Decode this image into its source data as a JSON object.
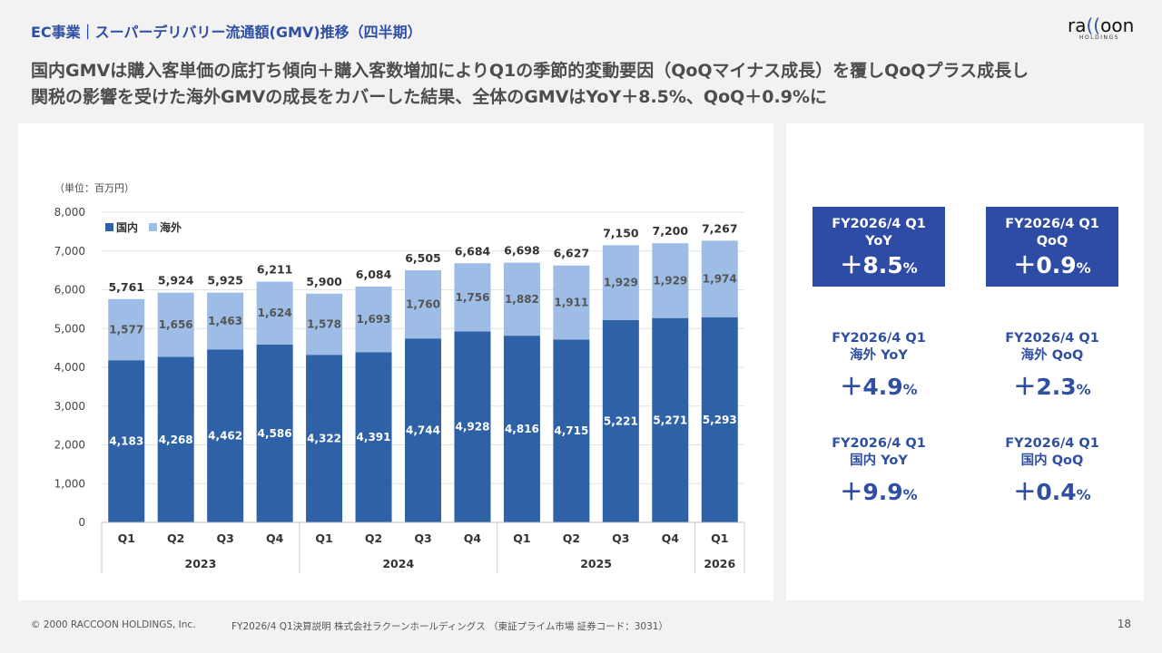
{
  "header": {
    "title": "EC事業｜スーパーデリバリー流通額(GMV)推移（四半期）",
    "logo_text": "raccoon",
    "logo_sub": "HOLDINGS"
  },
  "headline": {
    "line1": "国内GMVは購入客単価の底打ち傾向＋購入客数増加によりQ1の季節的変動要因（QoQマイナス成長）を覆しQoQプラス成長し",
    "line2": "関税の影響を受けた海外GMVの成長をカバーした結果、全体のGMVはYoY＋8.5%、QoQ＋0.9%に"
  },
  "colors": {
    "domestic": "#2e61a6",
    "overseas": "#9dbde6",
    "accent": "#2e4ba6",
    "title": "#2f4fa3"
  },
  "chart_data": {
    "type": "bar",
    "stacked": true,
    "unit_label": "（単位：百万円）",
    "categories": [
      "Q1",
      "Q2",
      "Q3",
      "Q4",
      "Q1",
      "Q2",
      "Q3",
      "Q4",
      "Q1",
      "Q2",
      "Q3",
      "Q4",
      "Q1"
    ],
    "year_groups": [
      {
        "label": "2023",
        "count": 4
      },
      {
        "label": "2024",
        "count": 4
      },
      {
        "label": "2025",
        "count": 4
      },
      {
        "label": "2026",
        "count": 1
      }
    ],
    "series": [
      {
        "name": "国内",
        "values": [
          4183,
          4268,
          4462,
          4586,
          4322,
          4391,
          4744,
          4928,
          4816,
          4715,
          5221,
          5271,
          5293
        ]
      },
      {
        "name": "海外",
        "values": [
          1577,
          1656,
          1463,
          1624,
          1578,
          1693,
          1760,
          1756,
          1882,
          1911,
          1929,
          1929,
          1974
        ]
      }
    ],
    "totals": [
      5761,
      5924,
      5925,
      6211,
      5900,
      6084,
      6505,
      6684,
      6698,
      6627,
      7150,
      7200,
      7267
    ],
    "ylim": [
      0,
      8000
    ],
    "yticks": [
      0,
      1000,
      2000,
      3000,
      4000,
      5000,
      6000,
      7000,
      8000
    ],
    "ytick_labels": [
      "0",
      "1,000",
      "2,000",
      "3,000",
      "4,000",
      "5,000",
      "6,000",
      "7,000",
      "8,000"
    ],
    "legend_position": "top-left",
    "grid": true
  },
  "kpis": [
    {
      "label": "FY2026/4 Q1\nYoY",
      "value": "＋8.5",
      "unit": "%",
      "filled": true
    },
    {
      "label": "FY2026/4 Q1\nQoQ",
      "value": "＋0.9",
      "unit": "%",
      "filled": true
    },
    {
      "label": "FY2026/4 Q1\n海外 YoY",
      "value": "＋4.9",
      "unit": "%",
      "filled": false
    },
    {
      "label": "FY2026/4 Q1\n海外 QoQ",
      "value": "＋2.3",
      "unit": "%",
      "filled": false
    },
    {
      "label": "FY2026/4 Q1\n国内 YoY",
      "value": "＋9.9",
      "unit": "%",
      "filled": false
    },
    {
      "label": "FY2026/4 Q1\n国内 QoQ",
      "value": "＋0.4",
      "unit": "%",
      "filled": false
    }
  ],
  "footer": {
    "copyright": "© 2000 RACCOON HOLDINGS, Inc.",
    "info": "FY2026/4 Q1決算説明 株式会社ラクーンホールディングス （東証プライム市場 証券コード：3031）",
    "page": "18"
  }
}
